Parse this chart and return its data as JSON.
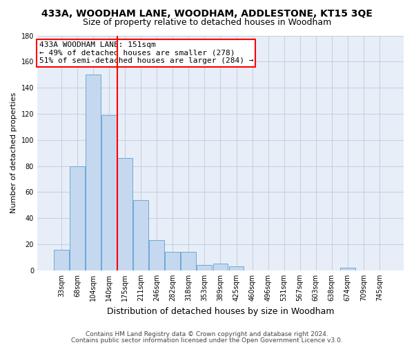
{
  "title": "433A, WOODHAM LANE, WOODHAM, ADDLESTONE, KT15 3QE",
  "subtitle": "Size of property relative to detached houses in Woodham",
  "xlabel": "Distribution of detached houses by size in Woodham",
  "ylabel": "Number of detached properties",
  "bar_labels": [
    "33sqm",
    "68sqm",
    "104sqm",
    "140sqm",
    "175sqm",
    "211sqm",
    "246sqm",
    "282sqm",
    "318sqm",
    "353sqm",
    "389sqm",
    "425sqm",
    "460sqm",
    "496sqm",
    "531sqm",
    "567sqm",
    "603sqm",
    "638sqm",
    "674sqm",
    "709sqm",
    "745sqm"
  ],
  "bar_values": [
    16,
    80,
    150,
    119,
    86,
    54,
    23,
    14,
    14,
    4,
    5,
    3,
    0,
    0,
    0,
    0,
    0,
    0,
    2,
    0,
    0
  ],
  "bar_color": "#c5d8f0",
  "bar_edge_color": "#6aaad4",
  "vline_color": "red",
  "ylim": [
    0,
    180
  ],
  "yticks": [
    0,
    20,
    40,
    60,
    80,
    100,
    120,
    140,
    160,
    180
  ],
  "annotation_text": "433A WOODHAM LANE: 151sqm\n← 49% of detached houses are smaller (278)\n51% of semi-detached houses are larger (284) →",
  "annotation_box_color": "white",
  "annotation_box_edge": "red",
  "footer_line1": "Contains HM Land Registry data © Crown copyright and database right 2024.",
  "footer_line2": "Contains public sector information licensed under the Open Government Licence v3.0.",
  "bg_color": "#e8eef8",
  "grid_color": "#c8d0e0",
  "title_fontsize": 10,
  "subtitle_fontsize": 9,
  "xlabel_fontsize": 9,
  "ylabel_fontsize": 8,
  "tick_fontsize": 7,
  "annotation_fontsize": 8,
  "footer_fontsize": 6.5
}
